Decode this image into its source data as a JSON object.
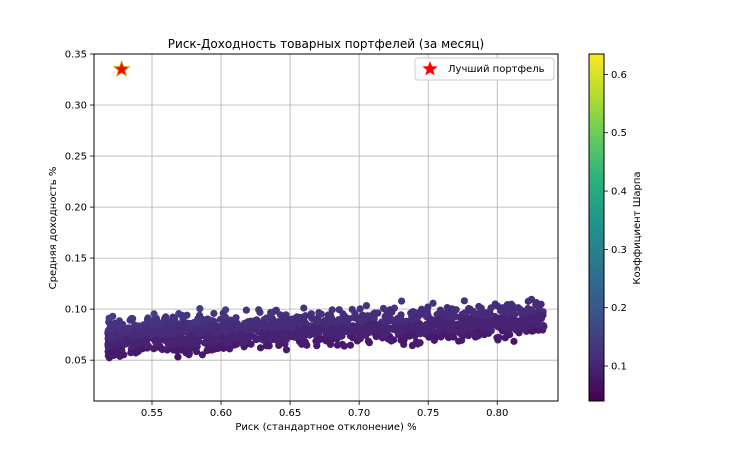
{
  "chart_data": {
    "type": "scatter",
    "title": "Риск-Доходность товарных портфелей (за месяц)",
    "xlabel": "Риск (стандартное отклонение) %",
    "ylabel": "Средняя доходность %",
    "xlim": [
      0.508,
      0.844
    ],
    "ylim": [
      0.01,
      0.35
    ],
    "xticks": [
      "0.55",
      "0.60",
      "0.65",
      "0.70",
      "0.75",
      "0.80"
    ],
    "xtick_values": [
      0.55,
      0.6,
      0.65,
      0.7,
      0.75,
      0.8
    ],
    "yticks": [
      "0.05",
      "0.10",
      "0.15",
      "0.20",
      "0.25",
      "0.30",
      "0.35"
    ],
    "ytick_values": [
      0.05,
      0.1,
      0.15,
      0.2,
      0.25,
      0.3,
      0.35
    ],
    "grid": true,
    "colormap": "viridis",
    "colorbar": {
      "label": "Коэффициент Шарпа",
      "range": [
        0.04,
        0.635
      ],
      "ticks": [
        "0.1",
        "0.2",
        "0.3",
        "0.4",
        "0.5",
        "0.6"
      ],
      "tick_values": [
        0.1,
        0.2,
        0.3,
        0.4,
        0.5,
        0.6
      ]
    },
    "legend": {
      "label": "Лучший портфель",
      "position": "top-right",
      "marker": "red star"
    },
    "best_portfolio": {
      "x": 0.528,
      "y": 0.335,
      "color": "#ff0000"
    },
    "point_cloud": {
      "count": 1500,
      "x_range": [
        0.518,
        0.834
      ],
      "y_range": [
        0.028,
        0.121
      ],
      "sharpe_range": [
        0.04,
        0.16
      ]
    }
  }
}
